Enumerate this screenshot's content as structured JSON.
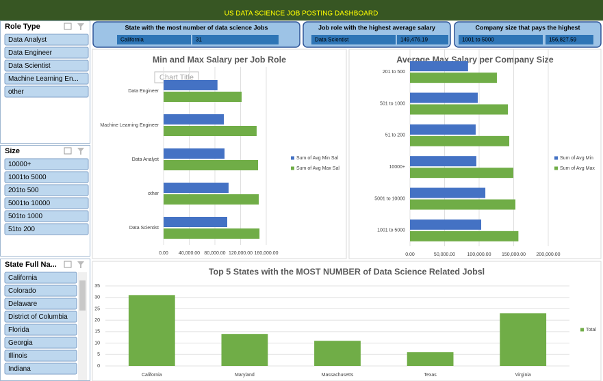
{
  "header": {
    "title": "US DATA SCIENCE JOB POSTING DASHBOARD"
  },
  "cards": [
    {
      "title": "State with the most number of data science Jobs",
      "label": "California",
      "value": "31"
    },
    {
      "title": "Job role with the highest average salary",
      "label": "Data Scientist",
      "value": "149,476.19"
    },
    {
      "title": "Company size that pays the highest",
      "label": "1001 to 5000",
      "value": "156,827.59"
    }
  ],
  "slicers": [
    {
      "title": "Role Type",
      "items": [
        "Data Analyst",
        "Data Engineer",
        "Data Scientist",
        "Machine Learning En...",
        "other"
      ]
    },
    {
      "title": "Size",
      "items": [
        "10000+",
        "1001to 5000",
        "201to 500",
        "5001to 10000",
        "501to 1000",
        "51to 200"
      ]
    },
    {
      "title": "State Full Na...",
      "items": [
        "California",
        "Colorado",
        "Delaware",
        "District of Columbia",
        "Florida",
        "Georgia",
        "Illinois",
        "Indiana"
      ]
    }
  ],
  "chart_data": [
    {
      "type": "barh",
      "title": "Min and Max Salary per Job Role",
      "placeholder": "Chart Title",
      "categories": [
        "Data Engineer",
        "Machine Learning Engineer",
        "Data Analyst",
        "other",
        "Data Scientist"
      ],
      "series": [
        {
          "name": "Sum of Avg Min Sal",
          "color": "#4472c4",
          "values": [
            84000,
            93900,
            95000,
            101300,
            99200
          ]
        },
        {
          "name": "Sum of Avg Max Sal",
          "color": "#70ad47",
          "values": [
            121600,
            145000,
            147200,
            148300,
            149476
          ]
        }
      ],
      "xlim": [
        0,
        160000
      ],
      "xticks": [
        {
          "value": 0,
          "label": "0.00"
        },
        {
          "value": 40000,
          "label": "40,000.00"
        },
        {
          "value": 80000,
          "label": "80,000.00"
        },
        {
          "value": 120000,
          "label": "120,000.00"
        },
        {
          "value": 160000,
          "label": "160,000.00"
        }
      ]
    },
    {
      "type": "barh",
      "title": "Average Max Salary per Company Size",
      "categories": [
        "201 to 500",
        "501 to 1000",
        "51 to 200",
        "10000+",
        "5001 to 10000",
        "1001 to 5000"
      ],
      "series": [
        {
          "name": "Sum of Avg Min",
          "color": "#4472c4",
          "values": [
            84000,
            98000,
            95000,
            96000,
            109000,
            103000
          ]
        },
        {
          "name": "Sum of Avg Max",
          "color": "#70ad47",
          "values": [
            125700,
            141600,
            143600,
            149500,
            152500,
            156828
          ]
        }
      ],
      "xlim": [
        0,
        200000
      ],
      "xticks": [
        {
          "value": 0,
          "label": "0.00"
        },
        {
          "value": 50000,
          "label": "50,000.00"
        },
        {
          "value": 100000,
          "label": "100,000.00"
        },
        {
          "value": 150000,
          "label": "150,000.00"
        },
        {
          "value": 200000,
          "label": "200,000.00"
        }
      ]
    },
    {
      "type": "bar",
      "title": "Top 5 States with the MOST NUMBER of Data Science Related Jobsl",
      "categories": [
        "California",
        "Maryland",
        "Massachusetts",
        "Texas",
        "Virginia"
      ],
      "series": [
        {
          "name": "Total",
          "color": "#70ad47",
          "values": [
            31,
            14,
            11,
            6,
            23
          ]
        }
      ],
      "ylim": [
        0,
        35
      ],
      "yticks": [
        0,
        5,
        10,
        15,
        20,
        25,
        30,
        35
      ],
      "grid": true
    }
  ]
}
